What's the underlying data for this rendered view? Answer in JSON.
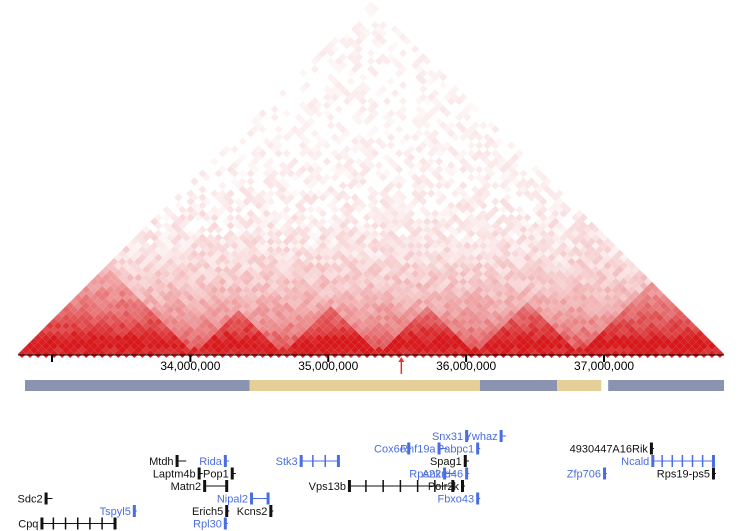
{
  "colors": {
    "heat_strong": "#d7191c",
    "heat_weak": "#ffffff",
    "axis": "#000000",
    "marker": "#e3342f",
    "compartment_a": "#8a93b0",
    "compartment_b": "#e3cf97",
    "gene_plus": "#4a6ee0",
    "gene_minus": "#111111"
  },
  "axis": {
    "ticks": [
      {
        "value": 34000000,
        "label": "34,000,000"
      },
      {
        "value": 35000000,
        "label": "35,000,000"
      },
      {
        "value": 36000000,
        "label": "36,000,000"
      },
      {
        "value": 37000000,
        "label": "37,000,000"
      }
    ],
    "start": 32750000,
    "end": 37870000,
    "marker_value": 35530000
  },
  "compartments": [
    {
      "start": 32750000,
      "end": 34430000,
      "type": "A"
    },
    {
      "start": 34430000,
      "end": 36100000,
      "type": "B"
    },
    {
      "start": 36100000,
      "end": 36660000,
      "type": "A"
    },
    {
      "start": 36660000,
      "end": 36980000,
      "type": "B"
    },
    {
      "start": 37030000,
      "end": 37870000,
      "type": "A"
    }
  ],
  "genes": [
    {
      "name": "Sdc2",
      "strand": "-",
      "start": 32950000,
      "end": 33000000,
      "row": 5,
      "label_side": "left"
    },
    {
      "name": "Cpq",
      "strand": "-",
      "start": 32920000,
      "end": 33450000,
      "row": 7,
      "label_side": "left"
    },
    {
      "name": "Tspyl5",
      "strand": "+",
      "start": 33590000,
      "end": 33610000,
      "row": 6,
      "label_side": "left"
    },
    {
      "name": "Mtdh",
      "strand": "-",
      "start": 33900000,
      "end": 33970000,
      "row": 2,
      "label_side": "left"
    },
    {
      "name": "Laptm4b",
      "strand": "-",
      "start": 34060000,
      "end": 34090000,
      "row": 3,
      "label_side": "left"
    },
    {
      "name": "Matn2",
      "strand": "-",
      "start": 34100000,
      "end": 34260000,
      "row": 4,
      "label_side": "left"
    },
    {
      "name": "Rida",
      "strand": "+",
      "start": 34250000,
      "end": 34280000,
      "row": 2,
      "label_side": "left"
    },
    {
      "name": "Pop1",
      "strand": "-",
      "start": 34300000,
      "end": 34330000,
      "row": 3,
      "label_side": "left"
    },
    {
      "name": "Nipal2",
      "strand": "+",
      "start": 34440000,
      "end": 34560000,
      "row": 5,
      "label_side": "left"
    },
    {
      "name": "Erich5",
      "strand": "-",
      "start": 34260000,
      "end": 34270000,
      "row": 6,
      "label_side": "left"
    },
    {
      "name": "Kcns2",
      "strand": "-",
      "start": 34580000,
      "end": 34600000,
      "row": 6,
      "label_side": "left"
    },
    {
      "name": "Rpl30",
      "strand": "+",
      "start": 34250000,
      "end": 34260000,
      "row": 7,
      "label_side": "left"
    },
    {
      "name": "Stk3",
      "strand": "+",
      "start": 34800000,
      "end": 35070000,
      "row": 2,
      "label_side": "left"
    },
    {
      "name": "Vps13b",
      "strand": "-",
      "start": 35150000,
      "end": 35900000,
      "row": 4,
      "label_side": "left"
    },
    {
      "name": "Cox6c",
      "strand": "+",
      "start": 35580000,
      "end": 35590000,
      "row": 1,
      "label_side": "left"
    },
    {
      "name": "Rnf19a",
      "strand": "+",
      "start": 35800000,
      "end": 35860000,
      "row": 1,
      "label_side": "left"
    },
    {
      "name": "Snx31",
      "strand": "+",
      "start": 36000000,
      "end": 36030000,
      "row": 0,
      "label_side": "left"
    },
    {
      "name": "Pabpc1",
      "strand": "+",
      "start": 36080000,
      "end": 36100000,
      "row": 1,
      "label_side": "left"
    },
    {
      "name": "Ywhaz",
      "strand": "+",
      "start": 36250000,
      "end": 36290000,
      "row": 0,
      "label_side": "left"
    },
    {
      "name": "Spag1",
      "strand": "-",
      "start": 35990000,
      "end": 36020000,
      "row": 2,
      "label_side": "left"
    },
    {
      "name": "Rps22",
      "strand": "+",
      "start": 35840000,
      "end": 35920000,
      "row": 3,
      "label_side": "left"
    },
    {
      "name": "Ankrd46",
      "strand": "+",
      "start": 36000000,
      "end": 36010000,
      "row": 3,
      "label_side": "left"
    },
    {
      "name": "Polr2k",
      "strand": "-",
      "start": 35970000,
      "end": 35990000,
      "row": 4,
      "label_side": "left"
    },
    {
      "name": "Fbxo43",
      "strand": "+",
      "start": 36080000,
      "end": 36090000,
      "row": 5,
      "label_side": "left"
    },
    {
      "name": "4930447A16Rik",
      "strand": "-",
      "start": 37340000,
      "end": 37350000,
      "row": 1,
      "label_side": "left"
    },
    {
      "name": "Ncald",
      "strand": "+",
      "start": 37350000,
      "end": 37790000,
      "row": 2,
      "label_side": "left"
    },
    {
      "name": "Zfp706",
      "strand": "+",
      "start": 37000000,
      "end": 37010000,
      "row": 3,
      "label_side": "left"
    },
    {
      "name": "Rps19-ps5",
      "strand": "-",
      "start": 37790000,
      "end": 37800000,
      "row": 3,
      "label_side": "left"
    }
  ]
}
